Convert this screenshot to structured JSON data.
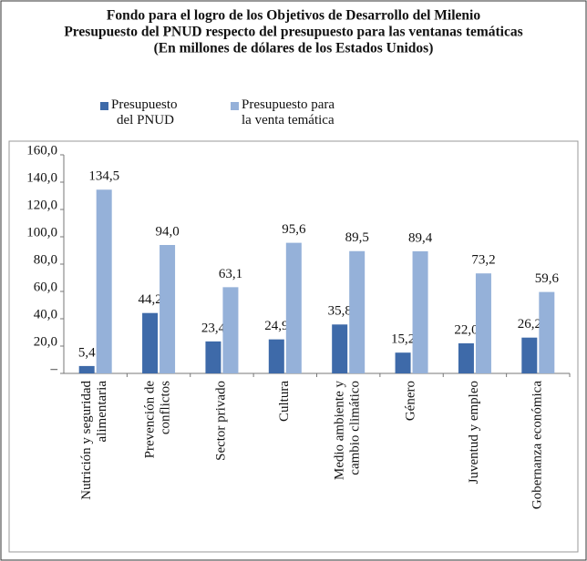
{
  "chart_data": {
    "type": "bar",
    "title": [
      "Fondo para el logro de los Objetivos de Desarrollo del Milenio",
      "Presupuesto del PNUD respecto del presupuesto para las ventanas temáticas",
      "(En millones de dólares de los Estados Unidos)"
    ],
    "categories": [
      "Nutrición y seguridad\nalimentaria",
      "Prevención de\nconflictos",
      "Sector privado",
      "Cultura",
      "Medio ambiente y\ncambio climático",
      "Género",
      "Juventud y empleo",
      "Gobernanza económica"
    ],
    "series": [
      {
        "name": "Presupuesto\ndel PNUD",
        "color": "#3e6aa9",
        "values": [
          5.4,
          44.2,
          23.4,
          24.9,
          35.8,
          15.2,
          22.0,
          26.2
        ],
        "value_labels": [
          "5,4",
          "44,2",
          "23,4",
          "24,9",
          "35,8",
          "15,2",
          "22,0",
          "26,2"
        ]
      },
      {
        "name": "Presupuesto para\nla venta temática",
        "color": "#95b1d9",
        "values": [
          134.5,
          94.0,
          63.1,
          95.6,
          89.5,
          89.4,
          73.2,
          59.6
        ],
        "value_labels": [
          "134,5",
          "94,0",
          "63,1",
          "95,6",
          "89,5",
          "89,4",
          "73,2",
          "59,6"
        ]
      }
    ],
    "ylim": [
      0,
      160
    ],
    "yticks": [
      {
        "value": 0,
        "label": "–"
      },
      {
        "value": 20,
        "label": "20,0"
      },
      {
        "value": 40,
        "label": "40,0"
      },
      {
        "value": 60,
        "label": "60,0"
      },
      {
        "value": 80,
        "label": "80,0"
      },
      {
        "value": 100,
        "label": "100,0"
      },
      {
        "value": 120,
        "label": "120,0"
      },
      {
        "value": 140,
        "label": "140,0"
      },
      {
        "value": 160,
        "label": "160,0"
      }
    ],
    "grid": false
  }
}
